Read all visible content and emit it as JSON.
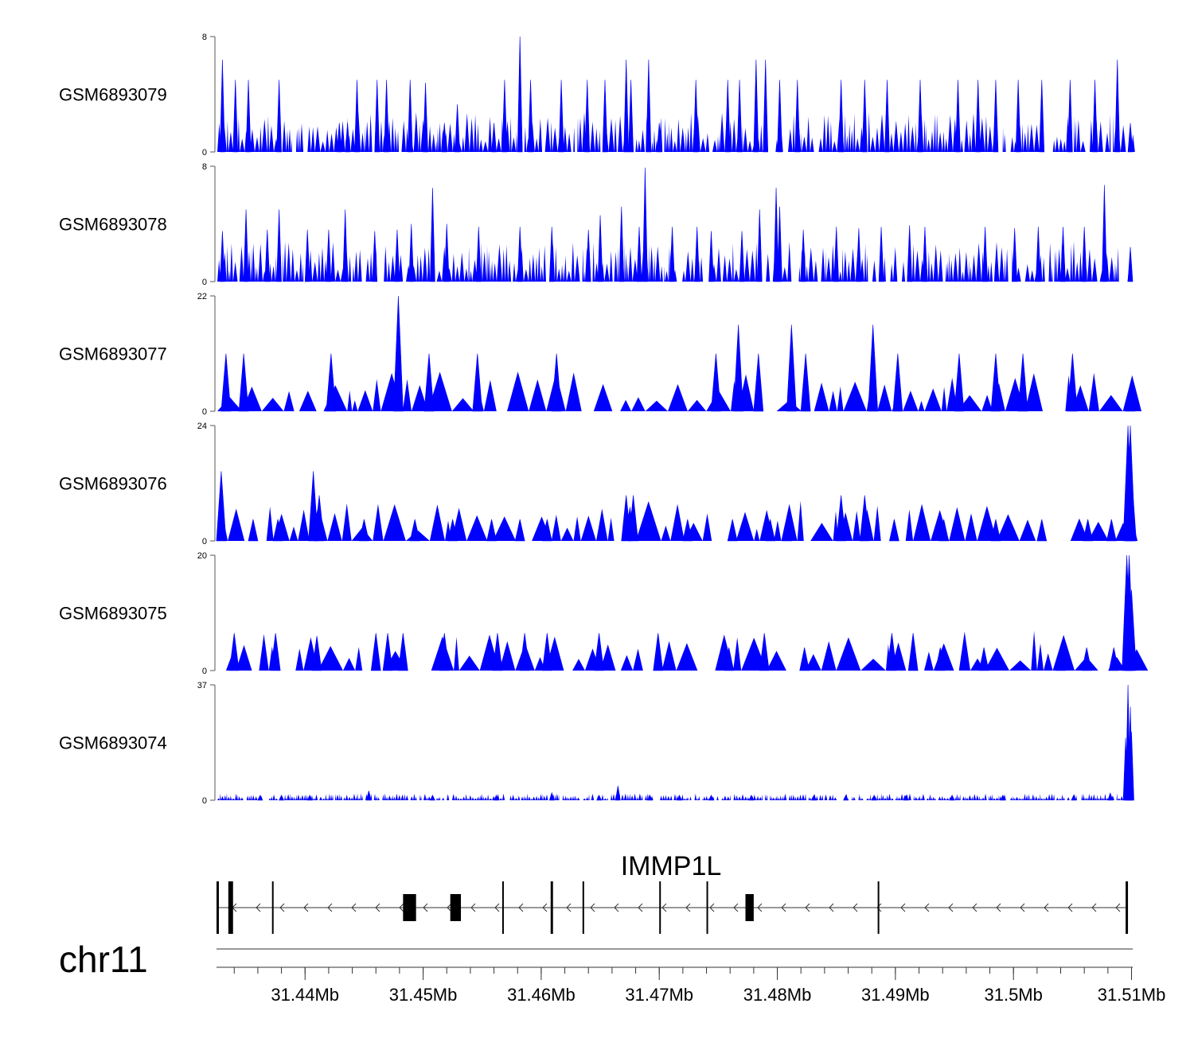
{
  "chart_data": {
    "type": "area",
    "title": "",
    "chromosome": "chr11",
    "x_range_mb": [
      31.4325,
      31.5101
    ],
    "fill_color": "#0000ff",
    "tracks": [
      {
        "name": "GSM6893079",
        "ylim": [
          0,
          8
        ],
        "y_ticks": [
          "8",
          "0"
        ],
        "peaks": [
          [
            31.433,
            6.4
          ],
          [
            31.4341,
            5.0
          ],
          [
            31.4352,
            5.0
          ],
          [
            31.4378,
            5.0
          ],
          [
            31.4429,
            2.0
          ],
          [
            31.4436,
            2.0
          ],
          [
            31.4444,
            5.0
          ],
          [
            31.4461,
            5.0
          ],
          [
            31.4469,
            5.0
          ],
          [
            31.4489,
            5.0
          ],
          [
            31.4502,
            4.8
          ],
          [
            31.4518,
            2.0
          ],
          [
            31.4529,
            3.3
          ],
          [
            31.456,
            2.0
          ],
          [
            31.4569,
            5.0
          ],
          [
            31.4582,
            8.0
          ],
          [
            31.4591,
            5.0
          ],
          [
            31.4617,
            5.0
          ],
          [
            31.4639,
            5.0
          ],
          [
            31.4654,
            5.0
          ],
          [
            31.4672,
            6.4
          ],
          [
            31.4676,
            5.0
          ],
          [
            31.4691,
            6.4
          ],
          [
            31.47,
            2.0
          ],
          [
            31.4731,
            5.0
          ],
          [
            31.4758,
            5.0
          ],
          [
            31.4768,
            5.0
          ],
          [
            31.4782,
            6.4
          ],
          [
            31.479,
            6.4
          ],
          [
            31.4802,
            5.0
          ],
          [
            31.4817,
            5.0
          ],
          [
            31.4854,
            5.0
          ],
          [
            31.4874,
            5.0
          ],
          [
            31.4893,
            5.0
          ],
          [
            31.4921,
            5.0
          ],
          [
            31.4953,
            5.0
          ],
          [
            31.497,
            5.0
          ],
          [
            31.4985,
            5.0
          ],
          [
            31.5004,
            5.0
          ],
          [
            31.5024,
            5.0
          ],
          [
            31.5048,
            5.0
          ],
          [
            31.5069,
            5.0
          ],
          [
            31.5088,
            6.4
          ],
          [
            31.5099,
            2.0
          ]
        ]
      },
      {
        "name": "GSM6893078",
        "ylim": [
          0,
          8
        ],
        "y_ticks": [
          "8",
          "0"
        ],
        "peaks": [
          [
            31.433,
            3.5
          ],
          [
            31.435,
            5.0
          ],
          [
            31.4368,
            3.6
          ],
          [
            31.4378,
            5.0
          ],
          [
            31.4402,
            3.6
          ],
          [
            31.442,
            3.6
          ],
          [
            31.4434,
            5.0
          ],
          [
            31.4459,
            3.5
          ],
          [
            31.4478,
            3.6
          ],
          [
            31.449,
            4.0
          ],
          [
            31.4508,
            6.5
          ],
          [
            31.452,
            4.0
          ],
          [
            31.4547,
            3.8
          ],
          [
            31.4582,
            3.8
          ],
          [
            31.4609,
            3.8
          ],
          [
            31.464,
            3.6
          ],
          [
            31.465,
            4.6
          ],
          [
            31.4668,
            5.2
          ],
          [
            31.4683,
            3.8
          ],
          [
            31.4688,
            7.9
          ],
          [
            31.4711,
            3.8
          ],
          [
            31.4732,
            3.8
          ],
          [
            31.4744,
            3.5
          ],
          [
            31.477,
            3.5
          ],
          [
            31.4785,
            5.0
          ],
          [
            31.4799,
            6.5
          ],
          [
            31.4802,
            5.2
          ],
          [
            31.4822,
            3.6
          ],
          [
            31.485,
            3.8
          ],
          [
            31.4869,
            3.7
          ],
          [
            31.4888,
            3.8
          ],
          [
            31.4912,
            3.9
          ],
          [
            31.4925,
            3.8
          ],
          [
            31.4976,
            3.8
          ],
          [
            31.5001,
            3.7
          ],
          [
            31.5021,
            3.8
          ],
          [
            31.5042,
            3.8
          ],
          [
            31.506,
            3.8
          ],
          [
            31.5077,
            6.7
          ],
          [
            31.5099,
            2.4
          ]
        ]
      },
      {
        "name": "GSM6893077",
        "ylim": [
          0,
          22
        ],
        "y_ticks": [
          "22",
          "0"
        ],
        "peaks": [
          [
            31.4333,
            11.0
          ],
          [
            31.4348,
            11.0
          ],
          [
            31.4422,
            11.0
          ],
          [
            31.4479,
            22.0
          ],
          [
            31.4505,
            11.0
          ],
          [
            31.4546,
            11.0
          ],
          [
            31.4613,
            11.0
          ],
          [
            31.4748,
            11.0
          ],
          [
            31.4767,
            16.5
          ],
          [
            31.4784,
            11.0
          ],
          [
            31.4812,
            16.5
          ],
          [
            31.4824,
            11.0
          ],
          [
            31.4881,
            16.5
          ],
          [
            31.4902,
            11.0
          ],
          [
            31.4954,
            11.0
          ],
          [
            31.4985,
            11.0
          ],
          [
            31.5008,
            11.0
          ],
          [
            31.505,
            11.0
          ],
          [
            31.5099,
            5.0
          ]
        ]
      },
      {
        "name": "GSM6893076",
        "ylim": [
          0,
          24
        ],
        "y_ticks": [
          "24",
          "0"
        ],
        "peaks": [
          [
            31.4329,
            14.5
          ],
          [
            31.4356,
            4.5
          ],
          [
            31.4377,
            4.5
          ],
          [
            31.4407,
            14.5
          ],
          [
            31.4412,
            9.5
          ],
          [
            31.445,
            4.5
          ],
          [
            31.4493,
            4.5
          ],
          [
            31.4525,
            4.5
          ],
          [
            31.4558,
            4.5
          ],
          [
            31.4582,
            4.5
          ],
          [
            31.4605,
            4.5
          ],
          [
            31.4672,
            9.5
          ],
          [
            31.4678,
            9.5
          ],
          [
            31.4724,
            4.5
          ],
          [
            31.4762,
            4.5
          ],
          [
            31.4794,
            4.5
          ],
          [
            31.4808,
            4.5
          ],
          [
            31.4854,
            9.5
          ],
          [
            31.4874,
            9.5
          ],
          [
            31.4899,
            4.5
          ],
          [
            31.4941,
            4.5
          ],
          [
            31.4985,
            4.5
          ],
          [
            31.5024,
            4.5
          ],
          [
            31.5063,
            4.5
          ],
          [
            31.5083,
            4.5
          ],
          [
            31.5097,
            24.0
          ],
          [
            31.5099,
            24.0
          ],
          [
            31.51,
            14.0
          ]
        ]
      },
      {
        "name": "GSM6893075",
        "ylim": [
          0,
          20
        ],
        "y_ticks": [
          "20",
          "0"
        ],
        "peaks": [
          [
            31.434,
            6.5
          ],
          [
            31.4375,
            6.5
          ],
          [
            31.441,
            6.0
          ],
          [
            31.446,
            6.5
          ],
          [
            31.447,
            6.5
          ],
          [
            31.4483,
            6.5
          ],
          [
            31.4518,
            6.5
          ],
          [
            31.4563,
            6.5
          ],
          [
            31.4586,
            6.5
          ],
          [
            31.4605,
            6.5
          ],
          [
            31.4649,
            6.5
          ],
          [
            31.4699,
            6.5
          ],
          [
            31.4759,
            4.0
          ],
          [
            31.4789,
            6.5
          ],
          [
            31.4823,
            4.0
          ],
          [
            31.4897,
            6.5
          ],
          [
            31.4915,
            6.5
          ],
          [
            31.4938,
            4.0
          ],
          [
            31.4975,
            4.0
          ],
          [
            31.504,
            3.5
          ],
          [
            31.5062,
            4.0
          ],
          [
            31.5085,
            4.0
          ],
          [
            31.5096,
            20.0
          ],
          [
            31.5098,
            20.0
          ],
          [
            31.51,
            14.0
          ]
        ]
      },
      {
        "name": "GSM6893074",
        "ylim": [
          0,
          37
        ],
        "y_ticks": [
          "37",
          "0"
        ],
        "peaks": [
          [
            31.4362,
            1.6
          ],
          [
            31.438,
            1.6
          ],
          [
            31.4404,
            1.6
          ],
          [
            31.4454,
            3.0
          ],
          [
            31.4508,
            1.6
          ],
          [
            31.4562,
            1.6
          ],
          [
            31.4609,
            2.4
          ],
          [
            31.4649,
            1.6
          ],
          [
            31.4665,
            4.6
          ],
          [
            31.4692,
            1.6
          ],
          [
            31.4717,
            1.6
          ],
          [
            31.4744,
            1.6
          ],
          [
            31.4778,
            1.6
          ],
          [
            31.4831,
            1.6
          ],
          [
            31.4858,
            1.6
          ],
          [
            31.4882,
            1.6
          ],
          [
            31.4909,
            1.6
          ],
          [
            31.4948,
            1.6
          ],
          [
            31.4991,
            1.6
          ],
          [
            31.5051,
            1.6
          ],
          [
            31.5082,
            2.3
          ],
          [
            31.5095,
            20.0
          ],
          [
            31.5097,
            37.0
          ],
          [
            31.5099,
            30.0
          ],
          [
            31.51,
            22.0
          ]
        ]
      }
    ],
    "gene": {
      "name": "IMMP1L",
      "strand": "-",
      "start_mb": 31.4325,
      "end_mb": 31.5096,
      "exons_mb": [
        [
          31.4325,
          31.4327
        ],
        [
          31.4335,
          31.4339
        ],
        [
          31.4372,
          31.4373
        ],
        [
          31.4483,
          31.4494
        ],
        [
          31.4523,
          31.4532
        ],
        [
          31.4567,
          31.4568
        ],
        [
          31.4608,
          31.461
        ],
        [
          31.4635,
          31.4636
        ],
        [
          31.47,
          31.4701
        ],
        [
          31.474,
          31.4741
        ],
        [
          31.4773,
          31.478
        ],
        [
          31.4885,
          31.4886
        ],
        [
          31.5095,
          31.5097
        ]
      ]
    },
    "genome_axis": {
      "tick_labels_mb": [
        "31.44Mb",
        "31.45Mb",
        "31.46Mb",
        "31.47Mb",
        "31.48Mb",
        "31.49Mb",
        "31.5Mb",
        "31.51Mb"
      ],
      "tick_values_mb": [
        31.44,
        31.45,
        31.46,
        31.47,
        31.48,
        31.49,
        31.5,
        31.51
      ],
      "minor_tick_step_mb": 0.002
    }
  }
}
